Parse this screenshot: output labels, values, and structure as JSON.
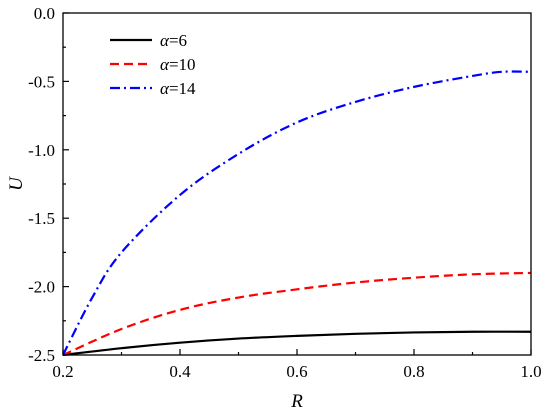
{
  "chart_data": {
    "type": "line",
    "xlabel": "R",
    "ylabel": "U",
    "xlim": [
      0.2,
      1.0
    ],
    "ylim": [
      -2.5,
      0.0
    ],
    "xticks": [
      0.2,
      0.4,
      0.6,
      0.8,
      1.0
    ],
    "xtick_labels": [
      "0.2",
      "0.4",
      "0.6",
      "0.8",
      "1.0"
    ],
    "yticks": [
      0.0,
      -0.5,
      -1.0,
      -1.5,
      -2.0,
      -2.5
    ],
    "ytick_labels": [
      "0.0",
      "-0.5",
      "-1.0",
      "-1.5",
      "-2.0",
      "-2.5"
    ],
    "grid": false,
    "legend_position": "top-left",
    "series": [
      {
        "name": "α=6",
        "legend_symbol": "α",
        "legend_value": "=6",
        "color": "#000000",
        "dash": "solid",
        "x": [
          0.2,
          0.3,
          0.4,
          0.5,
          0.6,
          0.7,
          0.8,
          0.9,
          1.0
        ],
        "y": [
          -2.5,
          -2.45,
          -2.41,
          -2.38,
          -2.36,
          -2.345,
          -2.335,
          -2.33,
          -2.33
        ]
      },
      {
        "name": "α=10",
        "legend_symbol": "α",
        "legend_value": "=10",
        "color": "#ff0000",
        "dash": "dash",
        "x": [
          0.2,
          0.3,
          0.4,
          0.5,
          0.6,
          0.7,
          0.8,
          0.9,
          1.0
        ],
        "y": [
          -2.5,
          -2.31,
          -2.17,
          -2.08,
          -2.02,
          -1.97,
          -1.935,
          -1.91,
          -1.9
        ]
      },
      {
        "name": "α=14",
        "legend_symbol": "α",
        "legend_value": "=14",
        "color": "#0000ff",
        "dash": "dashdot",
        "x": [
          0.2,
          0.25,
          0.3,
          0.4,
          0.5,
          0.6,
          0.7,
          0.8,
          0.9,
          0.95,
          1.0
        ],
        "y": [
          -2.5,
          -2.08,
          -1.75,
          -1.33,
          -1.03,
          -0.8,
          -0.65,
          -0.54,
          -0.46,
          -0.43,
          -0.43
        ]
      }
    ]
  }
}
